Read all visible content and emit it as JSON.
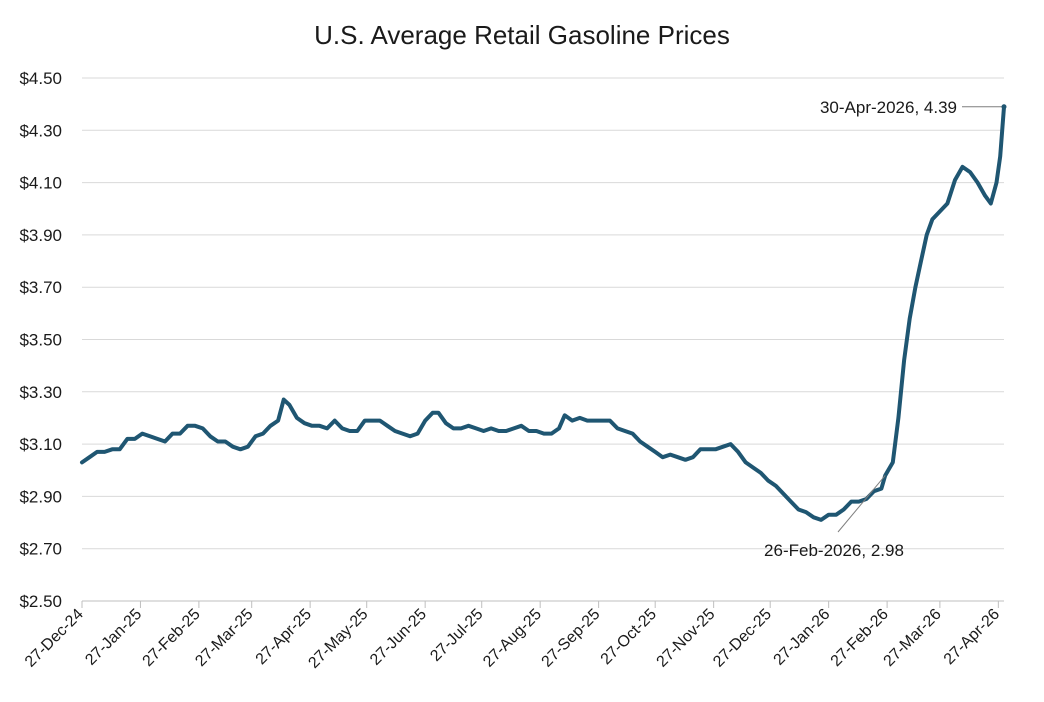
{
  "chart_data": {
    "type": "line",
    "title": "U.S. Average Retail Gasoline Prices",
    "xlabel": "",
    "ylabel": "",
    "ylim": [
      2.5,
      4.5
    ],
    "y_ticks": [
      "$2.50",
      "$2.70",
      "$2.90",
      "$3.10",
      "$3.30",
      "$3.50",
      "$3.70",
      "$3.90",
      "$4.10",
      "$4.30",
      "$4.50"
    ],
    "x_range": [
      "2024-12-27",
      "2026-04-30"
    ],
    "x_ticks": [
      {
        "date": "2024-12-27",
        "label": "27-Dec-24"
      },
      {
        "date": "2025-01-27",
        "label": "27-Jan-25"
      },
      {
        "date": "2025-02-27",
        "label": "27-Feb-25"
      },
      {
        "date": "2025-03-27",
        "label": "27-Mar-25"
      },
      {
        "date": "2025-04-27",
        "label": "27-Apr-25"
      },
      {
        "date": "2025-05-27",
        "label": "27-May-25"
      },
      {
        "date": "2025-06-27",
        "label": "27-Jun-25"
      },
      {
        "date": "2025-07-27",
        "label": "27-Jul-25"
      },
      {
        "date": "2025-08-27",
        "label": "27-Aug-25"
      },
      {
        "date": "2025-09-27",
        "label": "27-Sep-25"
      },
      {
        "date": "2025-10-27",
        "label": "27-Oct-25"
      },
      {
        "date": "2025-11-27",
        "label": "27-Nov-25"
      },
      {
        "date": "2025-12-27",
        "label": "27-Dec-25"
      },
      {
        "date": "2026-01-27",
        "label": "27-Jan-26"
      },
      {
        "date": "2026-02-27",
        "label": "27-Feb-26"
      },
      {
        "date": "2026-03-27",
        "label": "27-Mar-26"
      },
      {
        "date": "2026-04-27",
        "label": "27-Apr-26"
      }
    ],
    "grid": true,
    "legend": "none",
    "line_color": "#1f5672",
    "series": [
      {
        "points": [
          [
            "2024-12-27",
            3.03
          ],
          [
            "2024-12-31",
            3.05
          ],
          [
            "2025-01-04",
            3.07
          ],
          [
            "2025-01-08",
            3.07
          ],
          [
            "2025-01-12",
            3.08
          ],
          [
            "2025-01-16",
            3.08
          ],
          [
            "2025-01-20",
            3.12
          ],
          [
            "2025-01-24",
            3.12
          ],
          [
            "2025-01-28",
            3.14
          ],
          [
            "2025-02-01",
            3.13
          ],
          [
            "2025-02-05",
            3.12
          ],
          [
            "2025-02-09",
            3.11
          ],
          [
            "2025-02-13",
            3.14
          ],
          [
            "2025-02-17",
            3.14
          ],
          [
            "2025-02-21",
            3.17
          ],
          [
            "2025-02-25",
            3.17
          ],
          [
            "2025-03-01",
            3.16
          ],
          [
            "2025-03-05",
            3.13
          ],
          [
            "2025-03-09",
            3.11
          ],
          [
            "2025-03-13",
            3.11
          ],
          [
            "2025-03-17",
            3.09
          ],
          [
            "2025-03-21",
            3.08
          ],
          [
            "2025-03-25",
            3.09
          ],
          [
            "2025-03-29",
            3.13
          ],
          [
            "2025-04-02",
            3.14
          ],
          [
            "2025-04-06",
            3.17
          ],
          [
            "2025-04-10",
            3.19
          ],
          [
            "2025-04-13",
            3.27
          ],
          [
            "2025-04-16",
            3.25
          ],
          [
            "2025-04-20",
            3.2
          ],
          [
            "2025-04-24",
            3.18
          ],
          [
            "2025-04-28",
            3.17
          ],
          [
            "2025-05-02",
            3.17
          ],
          [
            "2025-05-06",
            3.16
          ],
          [
            "2025-05-10",
            3.19
          ],
          [
            "2025-05-14",
            3.16
          ],
          [
            "2025-05-18",
            3.15
          ],
          [
            "2025-05-22",
            3.15
          ],
          [
            "2025-05-26",
            3.19
          ],
          [
            "2025-05-30",
            3.19
          ],
          [
            "2025-06-03",
            3.19
          ],
          [
            "2025-06-07",
            3.17
          ],
          [
            "2025-06-11",
            3.15
          ],
          [
            "2025-06-15",
            3.14
          ],
          [
            "2025-06-19",
            3.13
          ],
          [
            "2025-06-23",
            3.14
          ],
          [
            "2025-06-27",
            3.19
          ],
          [
            "2025-07-01",
            3.22
          ],
          [
            "2025-07-04",
            3.22
          ],
          [
            "2025-07-08",
            3.18
          ],
          [
            "2025-07-12",
            3.16
          ],
          [
            "2025-07-16",
            3.16
          ],
          [
            "2025-07-20",
            3.17
          ],
          [
            "2025-07-24",
            3.16
          ],
          [
            "2025-07-28",
            3.15
          ],
          [
            "2025-08-01",
            3.16
          ],
          [
            "2025-08-05",
            3.15
          ],
          [
            "2025-08-09",
            3.15
          ],
          [
            "2025-08-13",
            3.16
          ],
          [
            "2025-08-17",
            3.17
          ],
          [
            "2025-08-21",
            3.15
          ],
          [
            "2025-08-25",
            3.15
          ],
          [
            "2025-08-29",
            3.14
          ],
          [
            "2025-09-02",
            3.14
          ],
          [
            "2025-09-06",
            3.16
          ],
          [
            "2025-09-09",
            3.21
          ],
          [
            "2025-09-13",
            3.19
          ],
          [
            "2025-09-17",
            3.2
          ],
          [
            "2025-09-21",
            3.19
          ],
          [
            "2025-09-25",
            3.19
          ],
          [
            "2025-09-29",
            3.19
          ],
          [
            "2025-10-03",
            3.19
          ],
          [
            "2025-10-07",
            3.16
          ],
          [
            "2025-10-11",
            3.15
          ],
          [
            "2025-10-15",
            3.14
          ],
          [
            "2025-10-19",
            3.11
          ],
          [
            "2025-10-23",
            3.09
          ],
          [
            "2025-10-27",
            3.07
          ],
          [
            "2025-10-31",
            3.05
          ],
          [
            "2025-11-04",
            3.06
          ],
          [
            "2025-11-08",
            3.05
          ],
          [
            "2025-11-12",
            3.04
          ],
          [
            "2025-11-16",
            3.05
          ],
          [
            "2025-11-20",
            3.08
          ],
          [
            "2025-11-24",
            3.08
          ],
          [
            "2025-11-28",
            3.08
          ],
          [
            "2025-12-02",
            3.09
          ],
          [
            "2025-12-06",
            3.1
          ],
          [
            "2025-12-10",
            3.07
          ],
          [
            "2025-12-14",
            3.03
          ],
          [
            "2025-12-18",
            3.01
          ],
          [
            "2025-12-22",
            2.99
          ],
          [
            "2025-12-26",
            2.96
          ],
          [
            "2025-12-30",
            2.94
          ],
          [
            "2026-01-03",
            2.91
          ],
          [
            "2026-01-07",
            2.88
          ],
          [
            "2026-01-11",
            2.85
          ],
          [
            "2026-01-15",
            2.84
          ],
          [
            "2026-01-19",
            2.82
          ],
          [
            "2026-01-23",
            2.81
          ],
          [
            "2026-01-27",
            2.83
          ],
          [
            "2026-01-31",
            2.83
          ],
          [
            "2026-02-04",
            2.85
          ],
          [
            "2026-02-08",
            2.88
          ],
          [
            "2026-02-12",
            2.88
          ],
          [
            "2026-02-16",
            2.89
          ],
          [
            "2026-02-20",
            2.92
          ],
          [
            "2026-02-24",
            2.93
          ],
          [
            "2026-02-26",
            2.98
          ],
          [
            "2026-03-02",
            3.03
          ],
          [
            "2026-03-05",
            3.2
          ],
          [
            "2026-03-08",
            3.42
          ],
          [
            "2026-03-11",
            3.58
          ],
          [
            "2026-03-14",
            3.7
          ],
          [
            "2026-03-17",
            3.8
          ],
          [
            "2026-03-20",
            3.9
          ],
          [
            "2026-03-23",
            3.96
          ],
          [
            "2026-03-27",
            3.99
          ],
          [
            "2026-03-31",
            4.02
          ],
          [
            "2026-04-04",
            4.11
          ],
          [
            "2026-04-08",
            4.16
          ],
          [
            "2026-04-12",
            4.14
          ],
          [
            "2026-04-16",
            4.1
          ],
          [
            "2026-04-20",
            4.05
          ],
          [
            "2026-04-23",
            4.02
          ],
          [
            "2026-04-26",
            4.1
          ],
          [
            "2026-04-28",
            4.2
          ],
          [
            "2026-04-30",
            4.39
          ]
        ]
      }
    ],
    "annotations": [
      {
        "text": "30-Apr-2026, 4.39",
        "date": "2026-04-30",
        "value": 4.39
      },
      {
        "text": "26-Feb-2026, 2.98",
        "date": "2026-02-26",
        "value": 2.98
      }
    ]
  }
}
